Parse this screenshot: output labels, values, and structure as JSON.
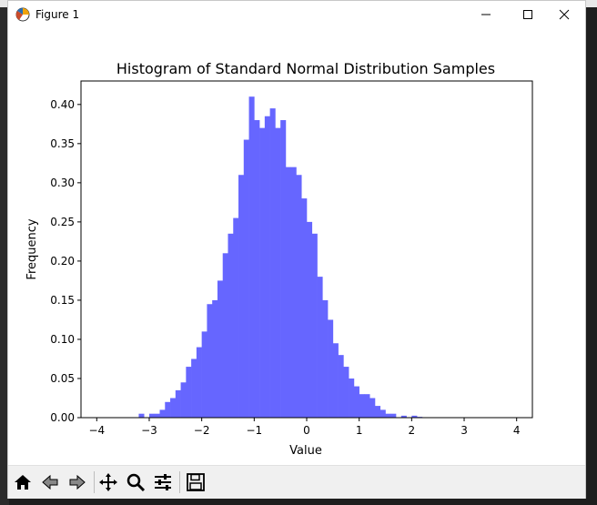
{
  "window": {
    "title": "Figure 1"
  },
  "controls": {
    "minimize": "—",
    "maximize": "☐",
    "close": "✕"
  },
  "toolbar": {
    "buttons": [
      {
        "name": "home-icon"
      },
      {
        "name": "back-icon"
      },
      {
        "name": "forward-icon"
      },
      {
        "name": "pan-icon"
      },
      {
        "name": "zoom-icon"
      },
      {
        "name": "configure-subplots-icon"
      },
      {
        "name": "save-icon"
      }
    ]
  },
  "chart_data": {
    "type": "bar",
    "title": "Histogram of Standard Normal Distribution Samples",
    "xlabel": "Value",
    "ylabel": "Frequency",
    "xlim": [
      -4.3,
      4.3
    ],
    "ylim": [
      0,
      0.43
    ],
    "xticks": [
      -4,
      -3,
      -2,
      -1,
      0,
      1,
      2,
      3,
      4
    ],
    "xtick_labels": [
      "−4",
      "−3",
      "−2",
      "−1",
      "0",
      "1",
      "2",
      "3",
      "4"
    ],
    "yticks": [
      0.0,
      0.05,
      0.1,
      0.15,
      0.2,
      0.25,
      0.3,
      0.35,
      0.4
    ],
    "ytick_labels": [
      "0.00",
      "0.05",
      "0.10",
      "0.15",
      "0.20",
      "0.25",
      "0.30",
      "0.35",
      "0.40"
    ],
    "bar_color": "#6666ff",
    "bin_width": 0.1,
    "bins_start": -3.2,
    "values": [
      0.005,
      0,
      0.005,
      0.005,
      0.01,
      0.02,
      0.025,
      0.035,
      0.045,
      0.065,
      0.075,
      0.09,
      0.11,
      0.145,
      0.15,
      0.175,
      0.21,
      0.235,
      0.255,
      0.31,
      0.355,
      0.41,
      0.38,
      0.37,
      0.385,
      0.395,
      0.37,
      0.38,
      0.32,
      0.32,
      0.31,
      0.28,
      0.25,
      0.235,
      0.18,
      0.15,
      0.125,
      0.095,
      0.08,
      0.065,
      0.05,
      0.04,
      0.03,
      0.03,
      0.025,
      0.015,
      0.01,
      0.005,
      0.005,
      0,
      0.0025,
      0,
      0.0025,
      0.001
    ]
  }
}
